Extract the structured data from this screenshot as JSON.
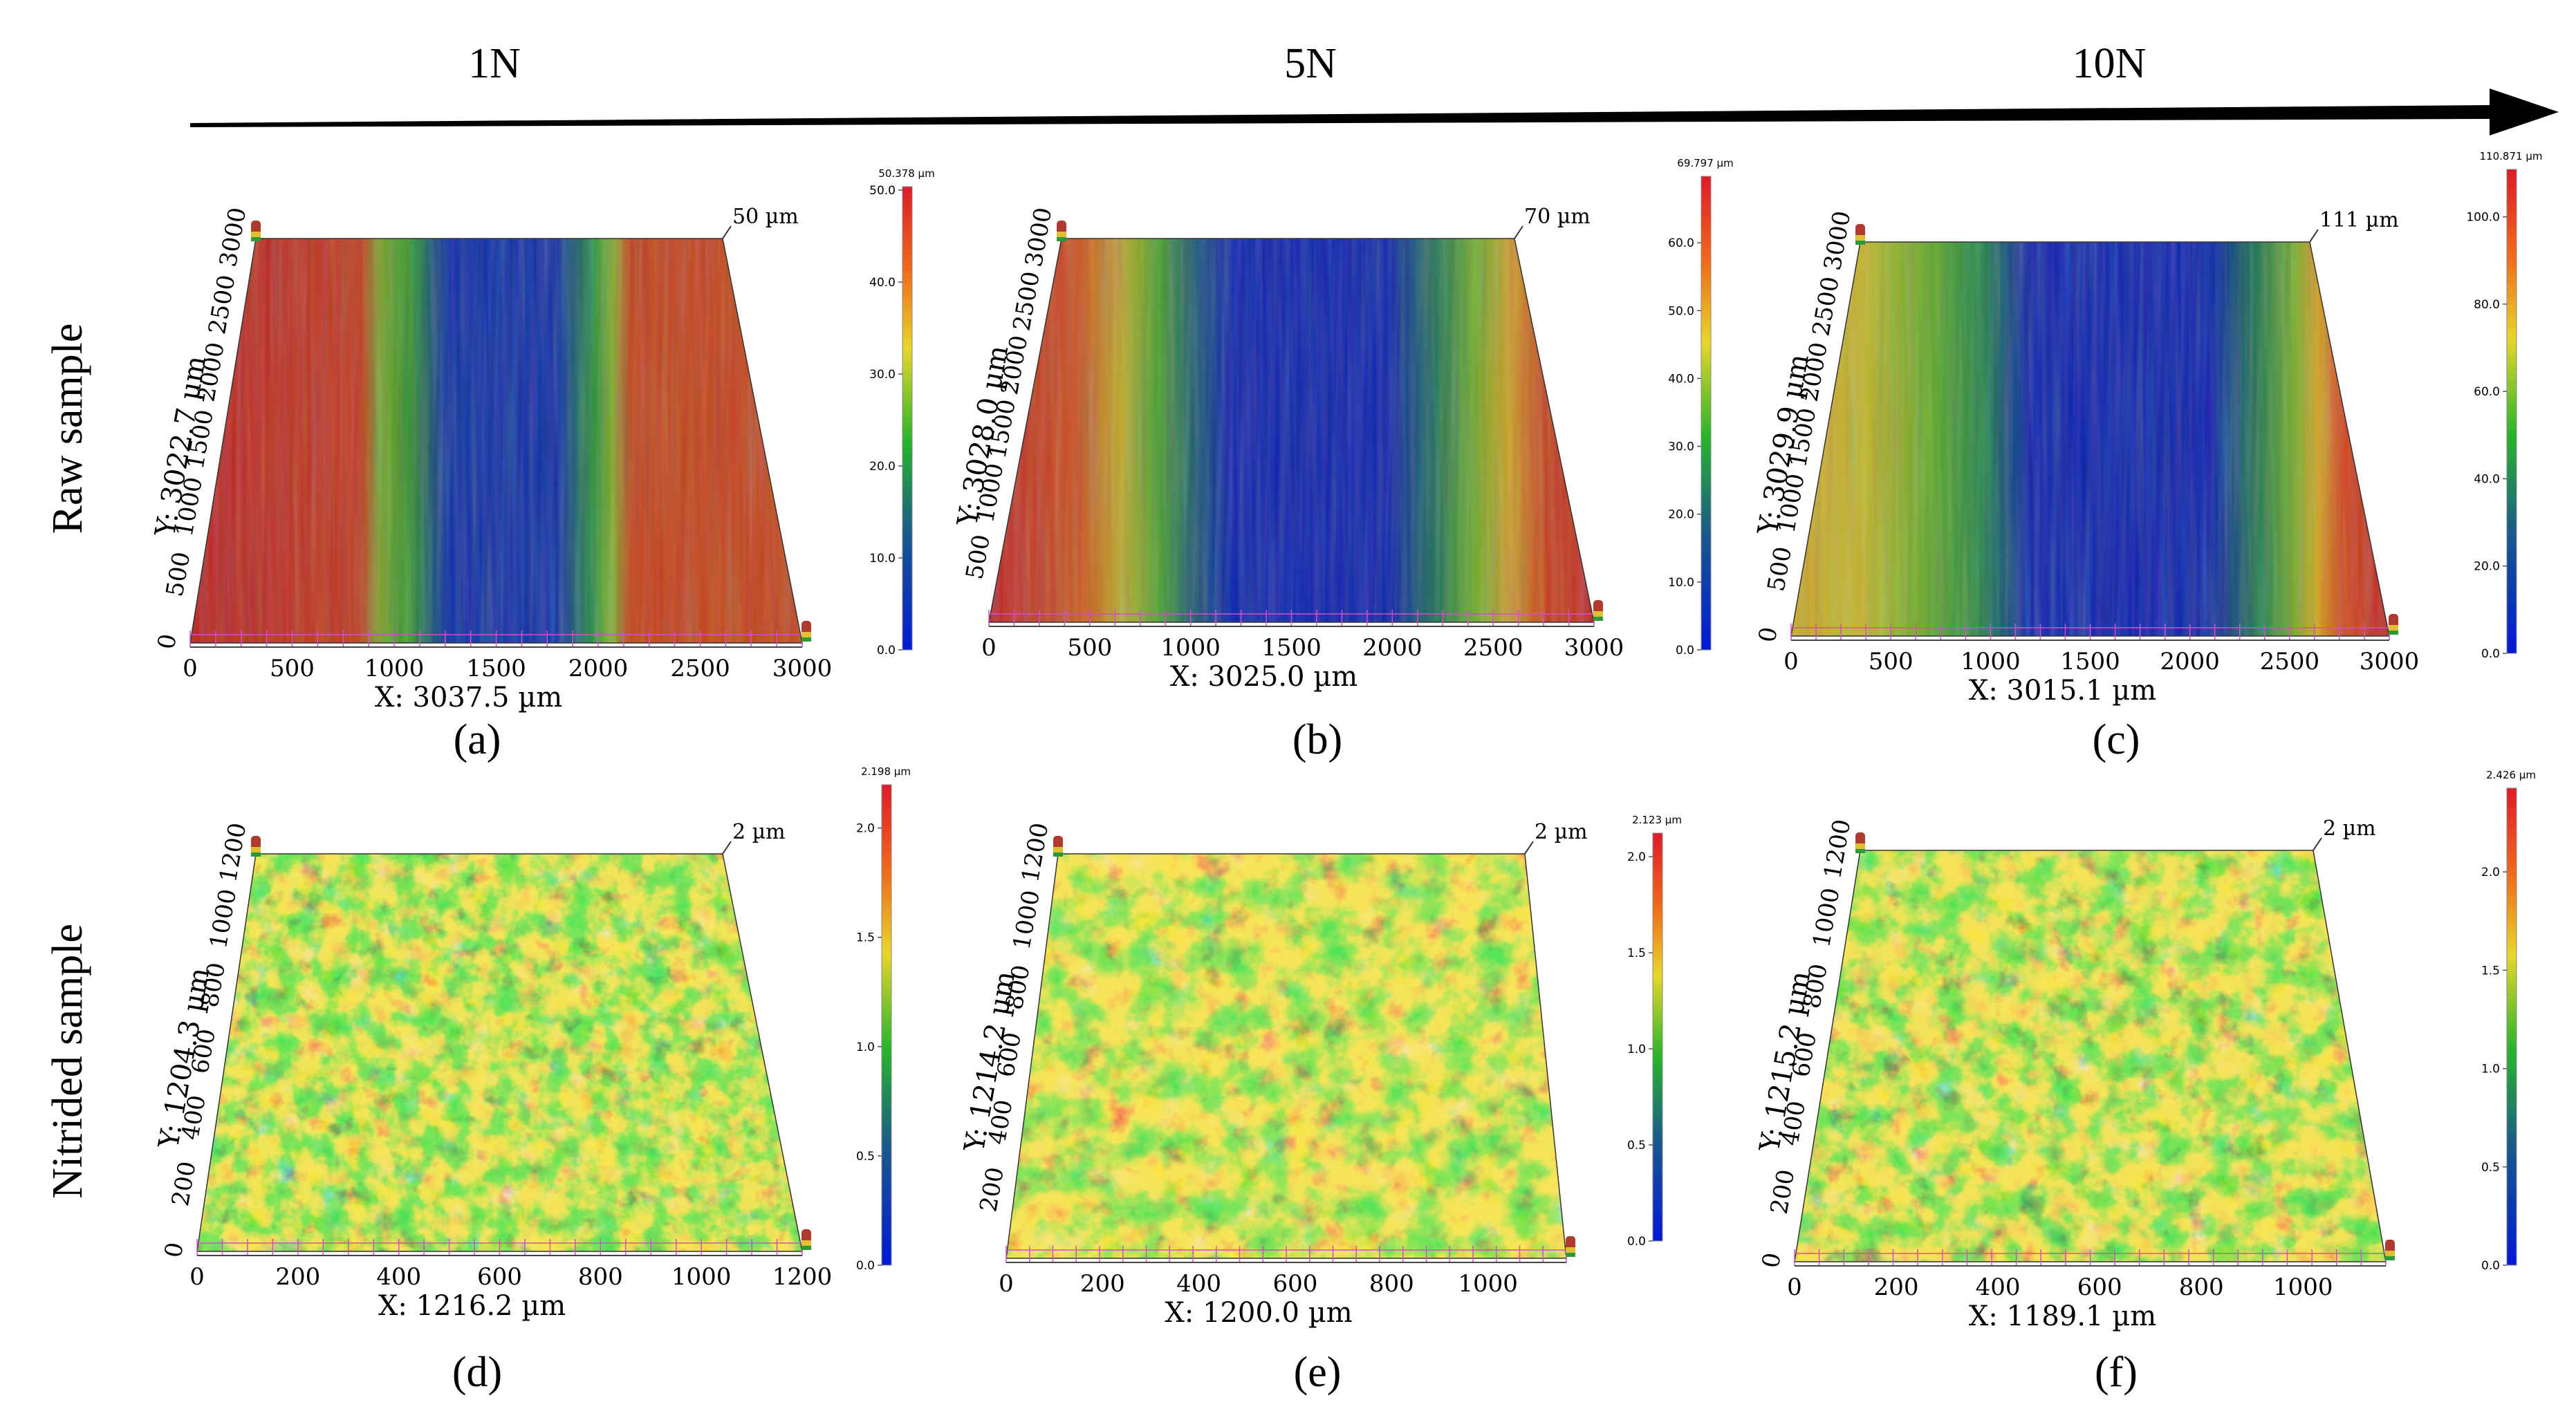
{
  "force_labels": [
    "1N",
    "5N",
    "10N"
  ],
  "row_labels": [
    "Raw sample",
    "Nitrided sample"
  ],
  "panels": [
    {
      "letter": "(a)",
      "x_axis": "X: 3037.5 µm",
      "y_axis": "Y: 3022.7 µm",
      "peak": "50 µm",
      "x_ticks": [
        "0",
        "500",
        "1000",
        "1500",
        "2000",
        "2500",
        "3000"
      ],
      "y_ticks": [
        "0",
        "500",
        "1000",
        "1500",
        "2000",
        "2500",
        "3000"
      ],
      "colorbar_max": "50.378 µm",
      "colorbar_ticks": [
        "0.0",
        "10.0",
        "20.0",
        "30.0",
        "40.0",
        "50.0"
      ]
    },
    {
      "letter": "(b)",
      "x_axis": "X: 3025.0 µm",
      "y_axis": "Y: 3028.0 µm",
      "peak": "70 µm",
      "x_ticks": [
        "0",
        "500",
        "1000",
        "1500",
        "2000",
        "2500",
        "3000"
      ],
      "y_ticks": [
        "500",
        "1000",
        "1500",
        "2000",
        "2500",
        "3000"
      ],
      "colorbar_max": "69.797 µm",
      "colorbar_ticks": [
        "0.0",
        "10.0",
        "20.0",
        "30.0",
        "40.0",
        "50.0",
        "60.0"
      ]
    },
    {
      "letter": "(c)",
      "x_axis": "X: 3015.1 µm",
      "y_axis": "Y: 3029.9 µm",
      "peak": "111 µm",
      "x_ticks": [
        "0",
        "500",
        "1000",
        "1500",
        "2000",
        "2500",
        "3000"
      ],
      "y_ticks": [
        "0",
        "500",
        "1000",
        "1500",
        "2000",
        "2500",
        "3000"
      ],
      "colorbar_max": "110.871 µm",
      "colorbar_ticks": [
        "0.0",
        "20.0",
        "40.0",
        "60.0",
        "80.0",
        "100.0"
      ]
    },
    {
      "letter": "(d)",
      "x_axis": "X: 1216.2 µm",
      "y_axis": "Y: 1204.3 µm",
      "peak": "2 µm",
      "x_ticks": [
        "0",
        "200",
        "400",
        "600",
        "800",
        "1000",
        "1200"
      ],
      "y_ticks": [
        "0",
        "200",
        "400",
        "600",
        "800",
        "1000",
        "1200"
      ],
      "colorbar_max": "2.198 µm",
      "colorbar_ticks": [
        "0.0",
        "0.5",
        "1.0",
        "1.5",
        "2.0"
      ]
    },
    {
      "letter": "(e)",
      "x_axis": "X: 1200.0 µm",
      "y_axis": "Y: 1214.2 µm",
      "peak": "2 µm",
      "x_ticks": [
        "0",
        "200",
        "400",
        "600",
        "800",
        "1000"
      ],
      "y_ticks": [
        "200",
        "400",
        "600",
        "800",
        "1000",
        "1200"
      ],
      "colorbar_max": "2.123 µm",
      "colorbar_ticks": [
        "0.0",
        "0.5",
        "1.0",
        "1.5",
        "2.0"
      ]
    },
    {
      "letter": "(f)",
      "x_axis": "X: 1189.1 µm",
      "y_axis": "Y: 1215.2 µm",
      "peak": "2 µm",
      "x_ticks": [
        "0",
        "200",
        "400",
        "600",
        "800",
        "1000"
      ],
      "y_ticks": [
        "0",
        "200",
        "400",
        "600",
        "800",
        "1000",
        "1200"
      ],
      "colorbar_max": "2.426 µm",
      "colorbar_ticks": [
        "0.0",
        "0.5",
        "1.0",
        "1.5",
        "2.0"
      ]
    }
  ],
  "colors": {
    "low": "#0a1fd6",
    "green": "#38b81e",
    "yellow": "#e6d22a",
    "high": "#e02020",
    "grid": "#d050c8"
  }
}
